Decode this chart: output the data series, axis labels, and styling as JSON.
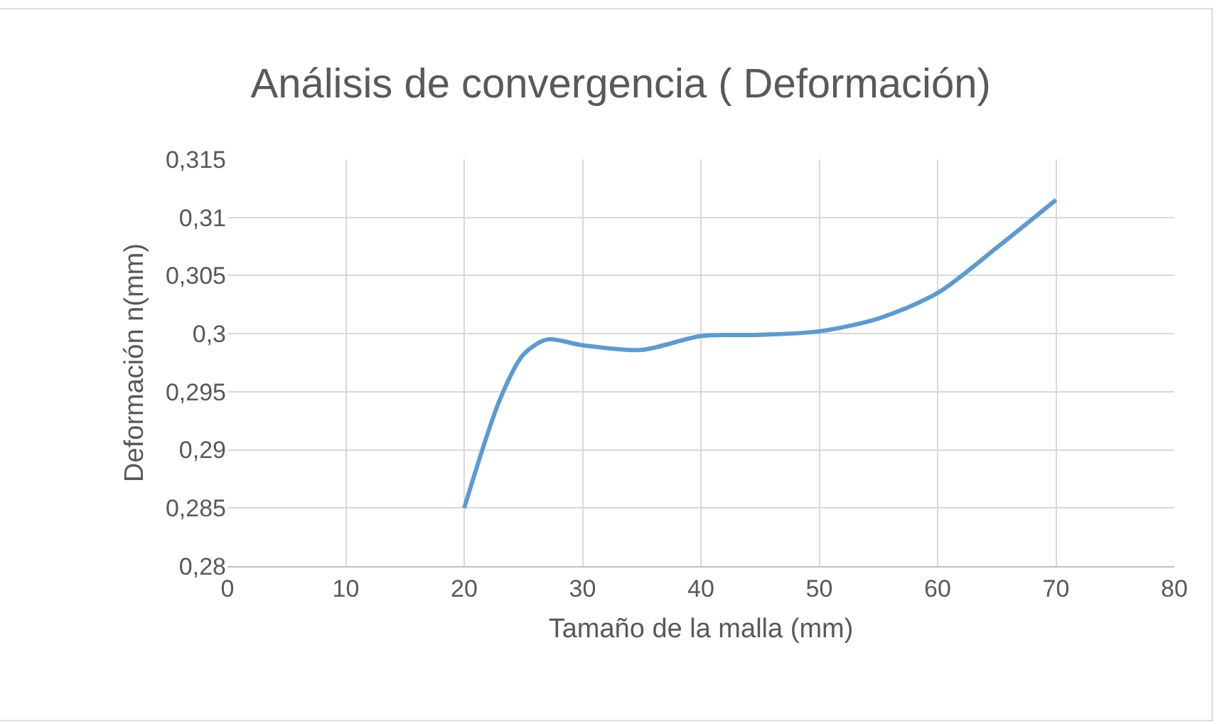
{
  "chart_data": {
    "type": "line",
    "title": "Análisis de convergencia ( Deformación)",
    "xlabel": "Tamaño de la malla (mm)",
    "ylabel": "Deformación n(mm)",
    "x": [
      20,
      23,
      25,
      27,
      30,
      35,
      40,
      45,
      50,
      55,
      60,
      65,
      70
    ],
    "series": [
      {
        "color": "#5b9bd5",
        "values": [
          0.285,
          0.2943,
          0.2982,
          0.2995,
          0.299,
          0.2986,
          0.2998,
          0.2999,
          0.3002,
          0.3013,
          0.3035,
          0.3074,
          0.3115
        ]
      }
    ],
    "xlim": [
      0,
      80
    ],
    "xticks": [
      0,
      10,
      20,
      30,
      40,
      50,
      60,
      70,
      80
    ],
    "ylim": [
      0.28,
      0.315
    ],
    "yticks": [
      {
        "value": 0.28,
        "label": "0,28"
      },
      {
        "value": 0.285,
        "label": "0,285"
      },
      {
        "value": 0.29,
        "label": "0,29"
      },
      {
        "value": 0.295,
        "label": "0,295"
      },
      {
        "value": 0.3,
        "label": "0,3"
      },
      {
        "value": 0.305,
        "label": "0,305"
      },
      {
        "value": 0.31,
        "label": "0,31"
      },
      {
        "value": 0.315,
        "label": "0,315"
      }
    ],
    "grid": true,
    "marker": "none",
    "line_style": "solid"
  }
}
